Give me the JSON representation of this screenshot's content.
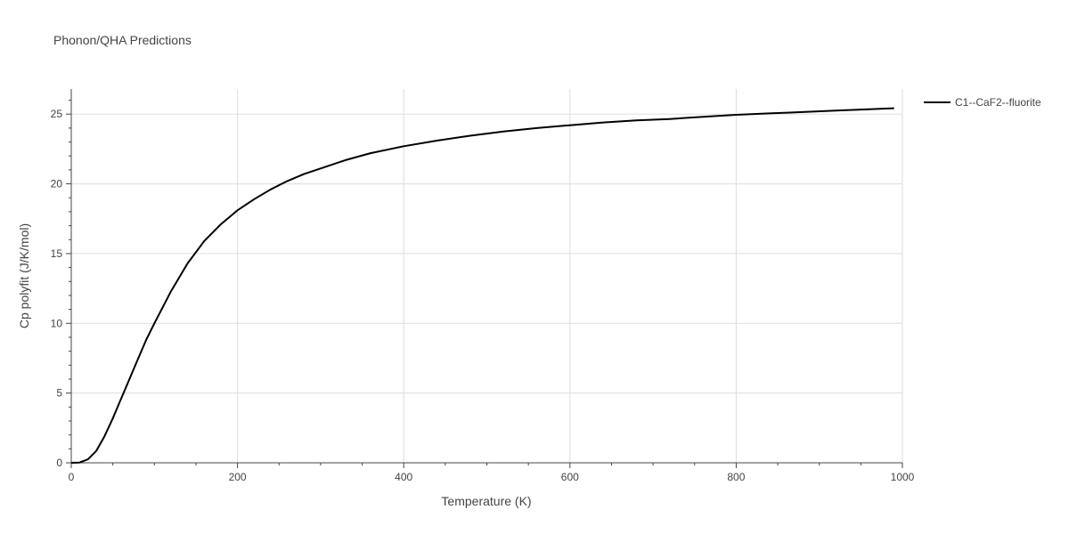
{
  "chart_data": {
    "type": "line",
    "title": "Phonon/QHA Predictions",
    "xlabel": "Temperature (K)",
    "ylabel": "Cp polyfit (J/K/mol)",
    "xlim": [
      0,
      1000
    ],
    "ylim": [
      0,
      26.8
    ],
    "xticks": [
      0,
      200,
      400,
      600,
      800,
      1000
    ],
    "xtick_labels": [
      "0",
      "200",
      "400",
      "600",
      "800",
      "1000"
    ],
    "yticks": [
      0,
      5,
      10,
      15,
      20,
      25
    ],
    "ytick_labels": [
      "0",
      "5",
      "10",
      "15",
      "20",
      "25"
    ],
    "grid": true,
    "legend_position": "top-right",
    "series": [
      {
        "name": "C1--CaF2--fluorite",
        "color": "#000000",
        "x": [
          0,
          10,
          20,
          30,
          40,
          50,
          60,
          70,
          80,
          90,
          100,
          120,
          140,
          160,
          180,
          200,
          220,
          240,
          260,
          280,
          300,
          330,
          360,
          400,
          440,
          480,
          520,
          560,
          600,
          640,
          680,
          720,
          760,
          800,
          840,
          880,
          920,
          960,
          990
        ],
        "y": [
          0,
          0.02,
          0.25,
          0.85,
          1.9,
          3.2,
          4.6,
          6.0,
          7.4,
          8.8,
          10.0,
          12.3,
          14.3,
          15.9,
          17.1,
          18.1,
          18.9,
          19.6,
          20.2,
          20.7,
          21.1,
          21.7,
          22.2,
          22.7,
          23.1,
          23.45,
          23.75,
          24.0,
          24.2,
          24.4,
          24.55,
          24.65,
          24.8,
          24.95,
          25.05,
          25.15,
          25.25,
          25.35,
          25.42
        ]
      }
    ]
  }
}
